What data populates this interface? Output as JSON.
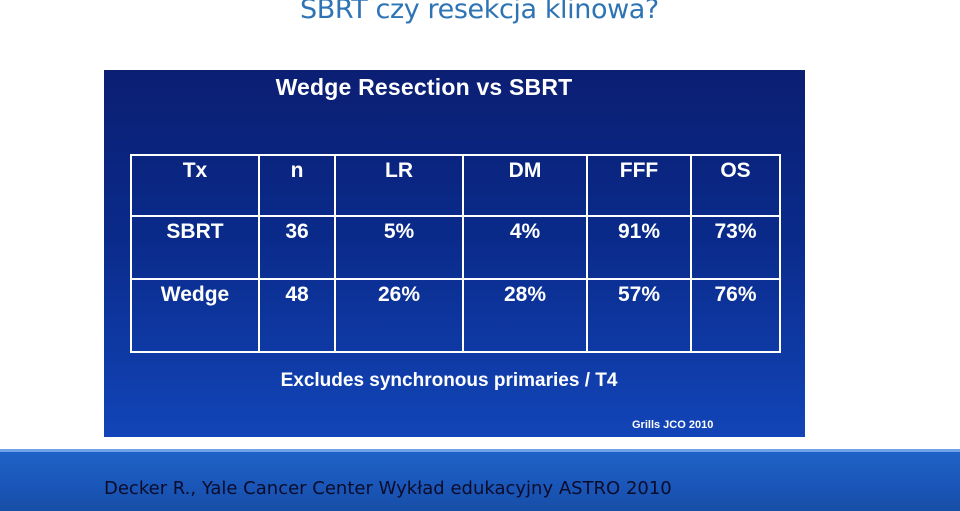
{
  "slide": {
    "title": "SBRT czy resekcja klinowa?"
  },
  "panel": {
    "title": "Wedge Resection vs SBRT",
    "table": {
      "headers": [
        "Tx",
        "n",
        "LR",
        "DM",
        "FFF",
        "OS"
      ],
      "rows": [
        [
          "SBRT",
          "36",
          "5%",
          "4%",
          "91%",
          "73%"
        ],
        [
          "Wedge",
          "48",
          "26%",
          "28%",
          "57%",
          "76%"
        ]
      ]
    },
    "footnote": "Excludes synchronous primaries / T4",
    "citation": "Grills JCO 2010"
  },
  "footer": {
    "text": "Decker R., Yale Cancer Center Wykład edukacyjny ASTRO 2010"
  },
  "colors": {
    "title": "#2e74b5",
    "panel_background": "#0a2a8a",
    "footer_bar": "#1f64c9",
    "table_text": "#ffffff"
  }
}
